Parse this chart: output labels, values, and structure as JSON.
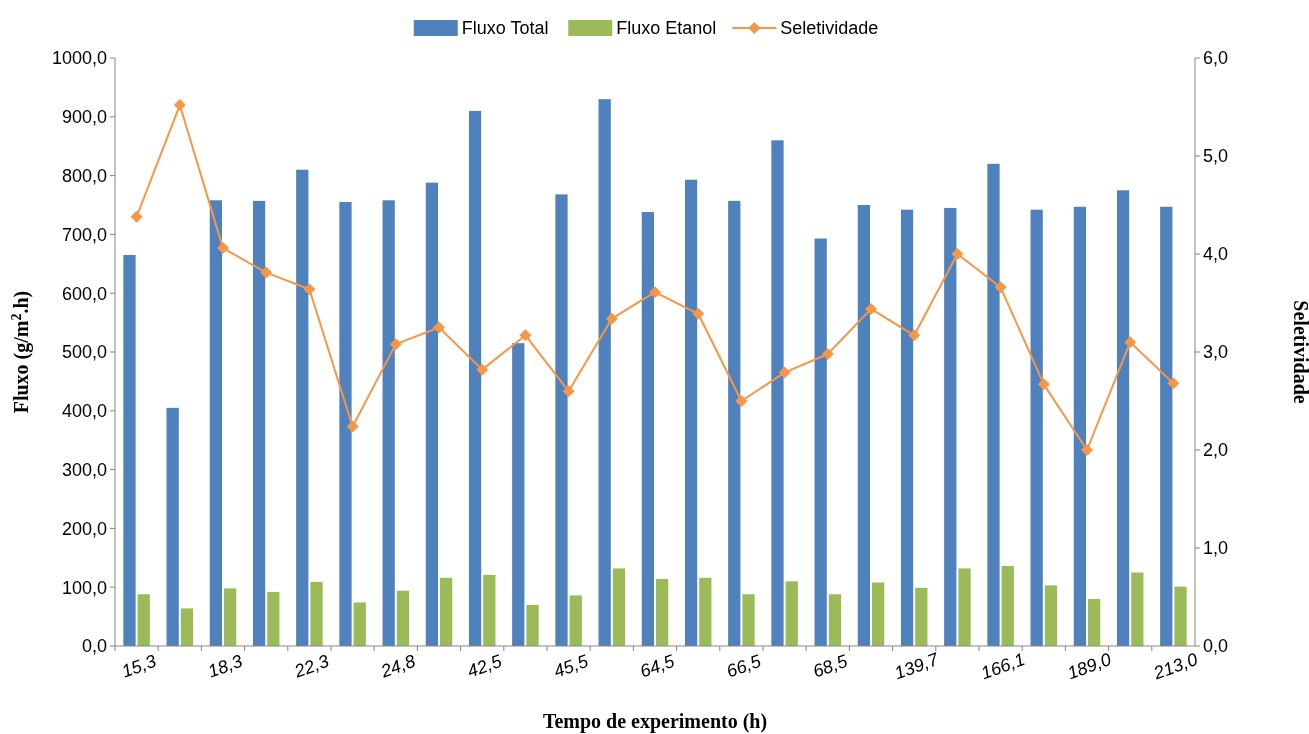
{
  "chart_data": {
    "type": "bar",
    "categories": [
      "15,3",
      null,
      "18,3",
      null,
      "22,3",
      null,
      "24,8",
      null,
      "42,5",
      null,
      "45,5",
      null,
      "64,5",
      null,
      "66,5",
      null,
      "68,5",
      null,
      "139,7",
      null,
      "166,1",
      null,
      "189,0",
      null,
      "213,0"
    ],
    "series": [
      {
        "name": "Fluxo Total",
        "color": "#4f81bd",
        "values": [
          665,
          405,
          758,
          757,
          810,
          755,
          758,
          788,
          910,
          515,
          768,
          930,
          738,
          793,
          757,
          860,
          693,
          750,
          742,
          745,
          820,
          742,
          747,
          775,
          747
        ]
      },
      {
        "name": "Fluxo Etanol",
        "color": "#9bbb59",
        "values": [
          88,
          64,
          98,
          92,
          109,
          74,
          94,
          116,
          121,
          70,
          86,
          132,
          114,
          116,
          88,
          110,
          88,
          108,
          99,
          132,
          136,
          103,
          80,
          125,
          101
        ]
      },
      {
        "name": "Seletividade",
        "type": "line",
        "axis": "y2",
        "color": "#f79646",
        "marker": "diamond",
        "values": [
          4.38,
          5.52,
          4.06,
          3.81,
          3.64,
          2.24,
          3.08,
          3.25,
          2.82,
          3.17,
          2.6,
          3.34,
          3.61,
          3.39,
          2.5,
          2.79,
          2.98,
          3.44,
          3.17,
          4.0,
          3.66,
          2.67,
          2.0,
          3.1,
          2.68
        ]
      }
    ],
    "xlabel": "Tempo de experimento (h)",
    "ylabel": "Fluxo (g/m$^{2}$.h)",
    "y2label": "Seletividade",
    "ylim": [
      0,
      1000
    ],
    "yticks": [
      {
        "value": 0,
        "label": "0,0"
      },
      {
        "value": 100,
        "label": "100,0"
      },
      {
        "value": 200,
        "label": "200,0"
      },
      {
        "value": 300,
        "label": "300,0"
      },
      {
        "value": 400,
        "label": "400,0"
      },
      {
        "value": 500,
        "label": "500,0"
      },
      {
        "value": 600,
        "label": "600,0"
      },
      {
        "value": 700,
        "label": "700,0"
      },
      {
        "value": 800,
        "label": "800,0"
      },
      {
        "value": 900,
        "label": "900,0"
      },
      {
        "value": 1000,
        "label": "1000,0"
      }
    ],
    "y2lim": [
      0,
      6
    ],
    "y2ticks": [
      {
        "value": 0,
        "label": "0,0"
      },
      {
        "value": 1,
        "label": "1,0"
      },
      {
        "value": 2,
        "label": "2,0"
      },
      {
        "value": 3,
        "label": "3,0"
      },
      {
        "value": 4,
        "label": "4,0"
      },
      {
        "value": 5,
        "label": "5,0"
      },
      {
        "value": 6,
        "label": "6,0"
      }
    ],
    "legend": "top",
    "grid": false
  }
}
